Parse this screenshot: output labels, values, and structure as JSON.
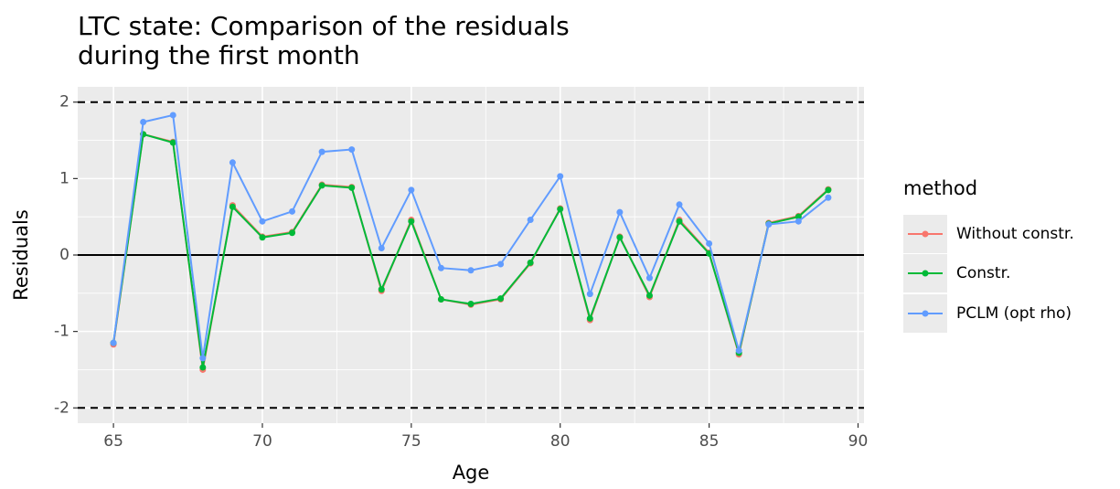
{
  "chart_data": {
    "type": "line",
    "title": [
      "LTC state: Comparison of the residuals",
      "during the first month"
    ],
    "x_label": "Age",
    "y_label": "Residuals",
    "legend_title": "method",
    "x": [
      65,
      66,
      67,
      68,
      69,
      70,
      71,
      72,
      73,
      74,
      75,
      76,
      77,
      78,
      79,
      80,
      81,
      82,
      83,
      84,
      85,
      86,
      87,
      88,
      89
    ],
    "series": [
      {
        "name": "Without constr.",
        "color": "#F8766D",
        "values": [
          -1.17,
          1.58,
          1.48,
          -1.5,
          0.65,
          0.24,
          0.3,
          0.92,
          0.89,
          -0.47,
          0.46,
          -0.58,
          -0.65,
          -0.58,
          -0.11,
          0.61,
          -0.85,
          0.24,
          -0.55,
          0.46,
          0.03,
          -1.3,
          0.42,
          0.51,
          0.86
        ]
      },
      {
        "name": "Constr.",
        "color": "#00BA38",
        "values": [
          -1.15,
          1.58,
          1.47,
          -1.47,
          0.63,
          0.23,
          0.29,
          0.91,
          0.88,
          -0.45,
          0.44,
          -0.58,
          -0.64,
          -0.57,
          -0.1,
          0.6,
          -0.83,
          0.23,
          -0.53,
          0.44,
          0.02,
          -1.28,
          0.41,
          0.5,
          0.85
        ]
      },
      {
        "name": "PCLM (opt rho)",
        "color": "#619CFF",
        "values": [
          -1.15,
          1.74,
          1.83,
          -1.35,
          1.21,
          0.44,
          0.57,
          1.35,
          1.38,
          0.09,
          0.85,
          -0.17,
          -0.2,
          -0.12,
          0.46,
          1.03,
          -0.51,
          0.56,
          -0.3,
          0.66,
          0.15,
          -1.25,
          0.4,
          0.44,
          0.75
        ]
      }
    ],
    "xlim": [
      63.8,
      90.2
    ],
    "xticks": [
      65,
      70,
      75,
      80,
      85,
      90
    ],
    "ylim": [
      -2.2,
      2.2
    ],
    "yticks": [
      -2,
      -1,
      0,
      1,
      2
    ],
    "hlines": [
      {
        "y": 2,
        "linetype": "dashed"
      },
      {
        "y": 0,
        "linetype": "solid"
      },
      {
        "y": -2,
        "linetype": "dashed"
      }
    ],
    "grid": true,
    "legend": "right"
  }
}
